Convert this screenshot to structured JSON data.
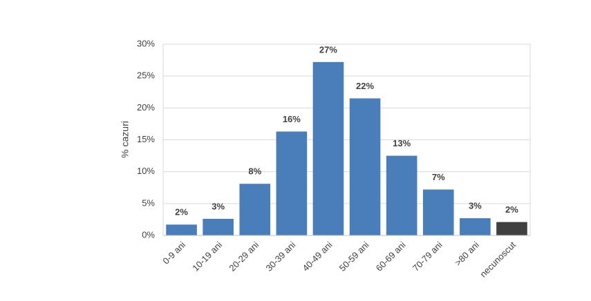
{
  "chart_data": {
    "type": "bar",
    "y_label": "% cazuri",
    "categories": [
      "0-9 ani",
      "10-19 ani",
      "20-29 ani",
      "30-39 ani",
      "40-49 ani",
      "50-59 ani",
      "60-69 ani",
      "70-79 ani",
      ">80 ani",
      "necunoscut"
    ],
    "values": [
      1.7,
      2.6,
      8.1,
      16.3,
      27.2,
      21.5,
      12.5,
      7.2,
      2.7,
      2.1
    ],
    "value_labels": [
      "2%",
      "3%",
      "8%",
      "16%",
      "27%",
      "22%",
      "13%",
      "7%",
      "3%",
      "2%"
    ],
    "colors": [
      "#4a7ebb",
      "#4a7ebb",
      "#4a7ebb",
      "#4a7ebb",
      "#4a7ebb",
      "#4a7ebb",
      "#4a7ebb",
      "#4a7ebb",
      "#4a7ebb",
      "#404040"
    ],
    "ylim": [
      0,
      30
    ],
    "yticks": [
      {
        "value": 0,
        "label": "0%"
      },
      {
        "value": 5,
        "label": "5%"
      },
      {
        "value": 10,
        "label": "10%"
      },
      {
        "value": 15,
        "label": "15%"
      },
      {
        "value": 20,
        "label": "20%"
      },
      {
        "value": 25,
        "label": "25%"
      },
      {
        "value": 30,
        "label": "30%"
      }
    ],
    "grid": true
  }
}
